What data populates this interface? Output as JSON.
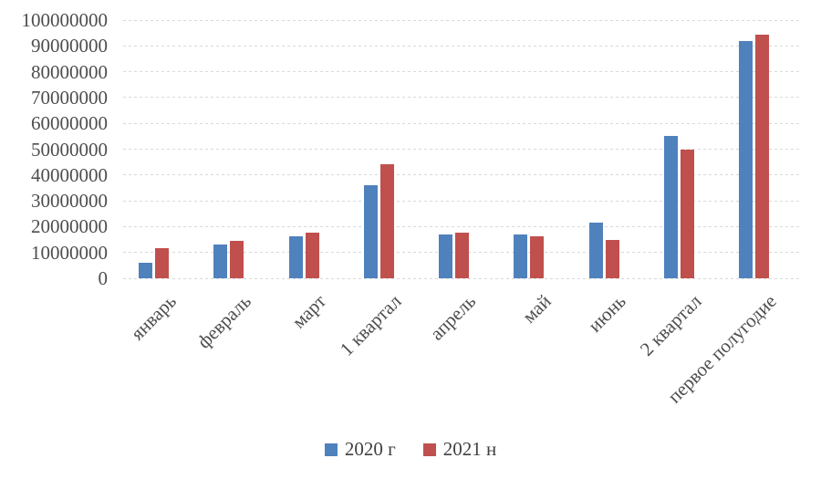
{
  "chart_data": {
    "type": "bar",
    "title": "",
    "xlabel": "",
    "ylabel": "",
    "categories": [
      "январь",
      "февраль",
      "март",
      "1 квартал",
      "апрель",
      "май",
      "июнь",
      "2 квартал",
      "первое полугодие"
    ],
    "series": [
      {
        "name": "2020 г",
        "color": "#4F81BD",
        "values": [
          6000000,
          13000000,
          16300000,
          36000000,
          16800000,
          16800000,
          21600000,
          55300000,
          92000000
        ]
      },
      {
        "name": "2021 н",
        "color": "#C0504D",
        "values": [
          11500000,
          14600000,
          17700000,
          44200000,
          17600000,
          16300000,
          15000000,
          50000000,
          94200000
        ]
      }
    ],
    "ylim": [
      0,
      100000000
    ],
    "ytick_step": 10000000,
    "yticks": [
      "0",
      "10000000",
      "20000000",
      "30000000",
      "40000000",
      "50000000",
      "60000000",
      "70000000",
      "80000000",
      "90000000",
      "100000000"
    ],
    "grid": true,
    "gridline_color": "#D9D9D9",
    "axis_text_color": "#4d4d4d",
    "legend_position": "bottom",
    "legend": [
      "2020 г",
      "2021 н"
    ]
  }
}
